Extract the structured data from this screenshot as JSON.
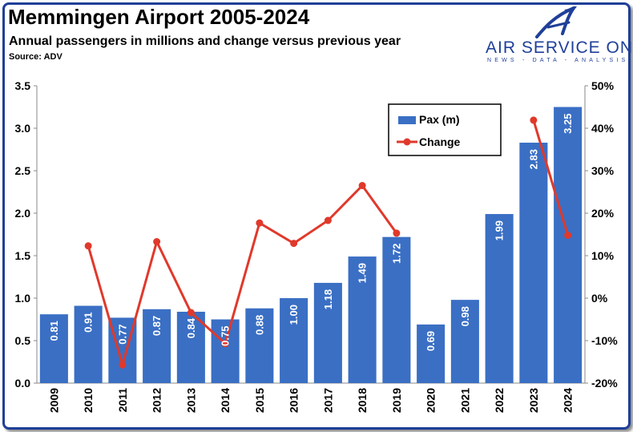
{
  "header": {
    "title": "Memmingen Airport 2005-2024",
    "subtitle": "Annual passengers in millions and change versus previous year",
    "source": "Source: ADV"
  },
  "logo": {
    "name": "AIR SERVICE ONE",
    "tagline": "NEWS - DATA - ANALYSIS",
    "mark_icon": "paper-plane-a-icon"
  },
  "colors": {
    "bar": "#3a6fc4",
    "line": "#e0392b",
    "brand": "#1f3f99"
  },
  "chart_data": {
    "type": "bar",
    "categories": [
      "2009",
      "2010",
      "2011",
      "2012",
      "2013",
      "2014",
      "2015",
      "2016",
      "2017",
      "2018",
      "2019",
      "2020",
      "2021",
      "2022",
      "2023",
      "2024"
    ],
    "series": [
      {
        "name": "Pax (m)",
        "type": "bar",
        "axis": "left",
        "values": [
          0.81,
          0.91,
          0.77,
          0.87,
          0.84,
          0.75,
          0.88,
          1.0,
          1.18,
          1.49,
          1.72,
          0.69,
          0.98,
          1.99,
          2.83,
          3.25
        ],
        "labels": [
          "0.81",
          "0.91",
          "0.77",
          "0.87",
          "0.84",
          "0.75",
          "0.88",
          "1.00",
          "1.18",
          "1.49",
          "1.72",
          "0.69",
          "0.98",
          "1.99",
          "2.83",
          "3.25"
        ]
      },
      {
        "name": "Change",
        "type": "line",
        "axis": "right",
        "values": [
          null,
          12.3,
          -15.7,
          13.3,
          -3.4,
          -10.7,
          17.7,
          12.9,
          18.3,
          26.5,
          15.3,
          null,
          null,
          null,
          41.9,
          14.8
        ]
      }
    ],
    "yleft": {
      "min": 0,
      "max": 3.5,
      "ticks": [
        "0.0",
        "0.5",
        "1.0",
        "1.5",
        "2.0",
        "2.5",
        "3.0",
        "3.5"
      ]
    },
    "yright": {
      "min": -20,
      "max": 50,
      "ticks": [
        "-20%",
        "-10%",
        "0%",
        "10%",
        "20%",
        "30%",
        "40%",
        "50%"
      ]
    },
    "legend": {
      "position": "top-right",
      "entries": [
        "Pax (m)",
        "Change"
      ]
    },
    "grid": false
  }
}
